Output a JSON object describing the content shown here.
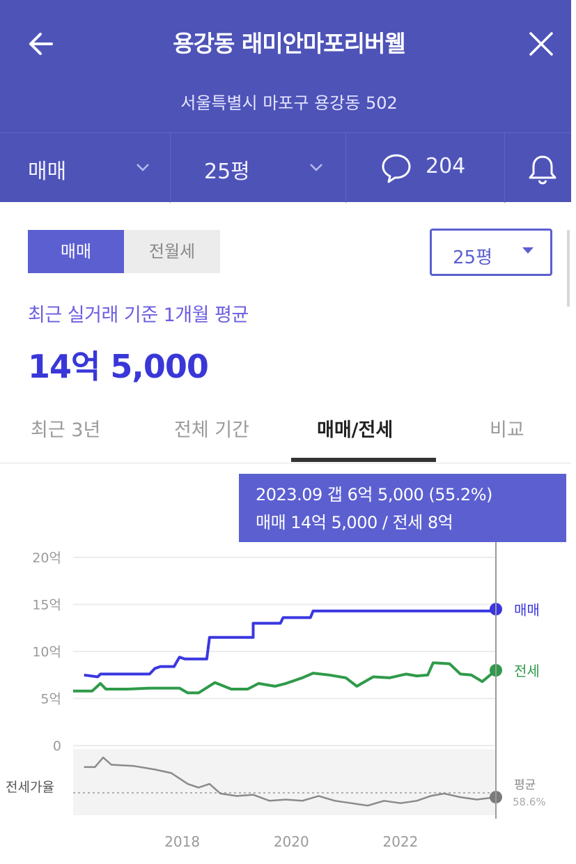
{
  "header": {
    "title": "용강동 래미안마포리버웰",
    "address": "서울특별시 마포구 용강동 502",
    "back_icon": "arrow-left-icon",
    "close_icon": "close-icon"
  },
  "filters": {
    "trade_type": "매매",
    "size": "25평",
    "comment_count": "204",
    "comment_icon": "speech-bubble-icon",
    "bell_icon": "bell-icon"
  },
  "segment": {
    "active": "매매",
    "inactive": "전월세"
  },
  "size_select": {
    "value": "25평"
  },
  "summary": {
    "label": "최근 실거래 기준 1개월 평균",
    "price": "14억 5,000"
  },
  "tabs": [
    {
      "label": "최근 3년",
      "active": false
    },
    {
      "label": "전체 기간",
      "active": false
    },
    {
      "label": "매매/전세",
      "active": true
    },
    {
      "label": "비교",
      "active": false
    }
  ],
  "tooltip": {
    "line1": "2023.09  갭 6억 5,000 (55.2%)",
    "line2": "매매 14억 5,000 / 전세 8억"
  },
  "colors": {
    "header_bg": "#4e53b8",
    "accent": "#5b5fd0",
    "sale": "#3a37e0",
    "jeonse": "#2f9a4a",
    "ratio": "#8a8a8a"
  },
  "chart_data": {
    "type": "line",
    "y_tick_labels": [
      "20억",
      "15억",
      "10억",
      "5억",
      "0"
    ],
    "y_ticks": [
      20,
      15,
      10,
      5,
      0
    ],
    "ylim": [
      0,
      20
    ],
    "x_tick_labels": [
      "2018",
      "2020",
      "2022"
    ],
    "x_ticks": [
      2018,
      2020,
      2022
    ],
    "xlim": [
      2016.0,
      2023.75
    ],
    "series": [
      {
        "name": "매매",
        "color": "#3a37e0",
        "x": [
          2016.2,
          2016.45,
          2016.5,
          2016.85,
          2017.15,
          2017.4,
          2017.5,
          2017.6,
          2017.85,
          2017.95,
          2018.05,
          2018.45,
          2018.5,
          2019.05,
          2019.3,
          2019.3,
          2019.8,
          2019.85,
          2020.35,
          2020.4,
          2023.65,
          2023.75
        ],
        "values": [
          7.5,
          7.3,
          7.6,
          7.6,
          7.6,
          7.6,
          8.2,
          8.4,
          8.4,
          9.4,
          9.2,
          9.2,
          11.5,
          11.5,
          11.5,
          13.0,
          13.0,
          13.6,
          13.6,
          14.3,
          14.3,
          14.5
        ]
      },
      {
        "name": "전세",
        "color": "#2f9a4a",
        "x": [
          2016.0,
          2016.35,
          2016.5,
          2016.6,
          2017.0,
          2017.4,
          2017.7,
          2017.95,
          2018.1,
          2018.3,
          2018.6,
          2018.9,
          2019.2,
          2019.4,
          2019.7,
          2019.9,
          2020.2,
          2020.4,
          2020.7,
          2021.0,
          2021.2,
          2021.5,
          2021.8,
          2022.1,
          2022.3,
          2022.5,
          2022.6,
          2022.9,
          2023.1,
          2023.3,
          2023.5,
          2023.75
        ],
        "values": [
          5.8,
          5.8,
          6.6,
          6.0,
          6.0,
          6.1,
          6.1,
          6.1,
          5.6,
          5.6,
          6.7,
          6.0,
          6.0,
          6.6,
          6.3,
          6.6,
          7.2,
          7.7,
          7.5,
          7.2,
          6.3,
          7.3,
          7.2,
          7.6,
          7.4,
          7.5,
          8.8,
          8.7,
          7.6,
          7.5,
          6.8,
          8.0
        ]
      }
    ],
    "sub_chart": {
      "label": "전세가율",
      "average_label": "평균",
      "average_value": "58.6%",
      "x": [
        2016.2,
        2016.4,
        2016.55,
        2016.7,
        2017.1,
        2017.5,
        2017.8,
        2018.1,
        2018.3,
        2018.5,
        2018.7,
        2019.0,
        2019.3,
        2019.6,
        2019.9,
        2020.2,
        2020.5,
        2020.8,
        2021.1,
        2021.4,
        2021.7,
        2022.0,
        2022.3,
        2022.55,
        2022.8,
        2023.1,
        2023.4,
        2023.75
      ],
      "values": [
        80,
        80,
        88,
        82,
        81,
        78,
        75,
        66,
        63,
        66,
        58,
        56,
        57,
        52,
        53,
        52,
        56,
        52,
        50,
        48,
        52,
        50,
        52,
        56,
        58,
        55,
        53,
        55
      ]
    }
  }
}
